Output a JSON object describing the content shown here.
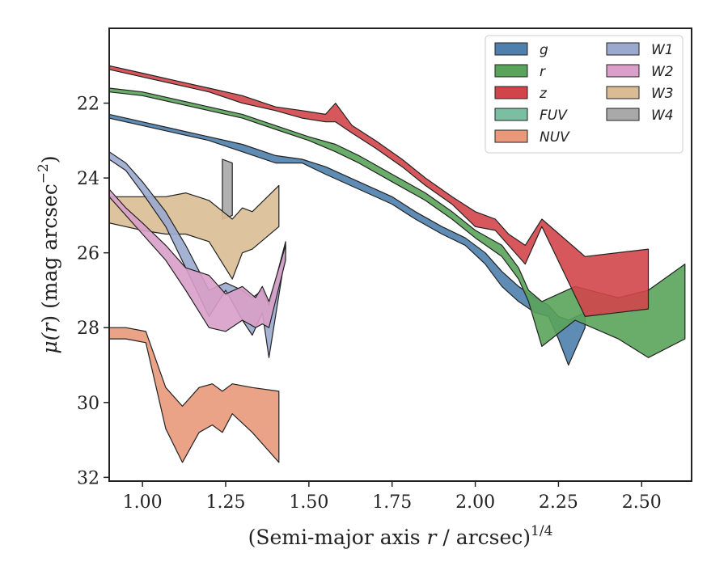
{
  "chart_data": {
    "type": "area",
    "title": "",
    "xlabel": "(Semi-major axis r / arcsec)",
    "xlabel_parts": {
      "pre": "(Semi-major axis ",
      "var": "r",
      "post": " / arcsec)",
      "sup": "1/4"
    },
    "ylabel": "μ(r) (mag arcsec⁻²)",
    "ylabel_parts": {
      "mu": "μ(",
      "var": "r",
      "post": ") (mag arcsec",
      "sup": "−2",
      "close": ")"
    },
    "xlim": [
      0.9,
      2.65
    ],
    "ylim": [
      32.1,
      20.0
    ],
    "y_inverted": true,
    "grid": false,
    "legend_position": "top-right",
    "x_ticks": [
      1.0,
      1.25,
      1.5,
      1.75,
      2.0,
      2.25,
      2.5
    ],
    "x_tick_labels": [
      "1.00",
      "1.25",
      "1.50",
      "1.75",
      "2.00",
      "2.25",
      "2.50"
    ],
    "y_ticks": [
      22,
      24,
      26,
      28,
      30,
      32
    ],
    "y_tick_labels": [
      "22",
      "24",
      "26",
      "28",
      "30",
      "32"
    ],
    "series": [
      {
        "name": "W4",
        "color": "#a9a9a9",
        "bands": [
          {
            "x": [
              1.24,
              1.27
            ],
            "y_lo": [
              25.1,
              25.0
            ],
            "y_hi": [
              23.5,
              23.6
            ]
          }
        ]
      },
      {
        "name": "W3",
        "color": "#d9bc94",
        "bands": [
          {
            "x": [
              0.9,
              1.0,
              1.07,
              1.13,
              1.2,
              1.27,
              1.3,
              1.33,
              1.41
            ],
            "y_lo": [
              25.2,
              25.4,
              25.5,
              25.5,
              25.7,
              26.7,
              26.0,
              25.9,
              25.3
            ],
            "y_hi": [
              24.5,
              24.5,
              24.5,
              24.4,
              24.6,
              25.1,
              24.8,
              24.9,
              24.2
            ]
          }
        ]
      },
      {
        "name": "W1",
        "color": "#9aaacf",
        "bands": [
          {
            "x": [
              0.9,
              0.95,
              1.0,
              1.07,
              1.13,
              1.2,
              1.25,
              1.3,
              1.33,
              1.36,
              1.38,
              1.43
            ],
            "y_lo": [
              23.5,
              23.8,
              24.4,
              25.3,
              26.4,
              27.7,
              27.0,
              27.8,
              28.2,
              27.6,
              28.8,
              26.0
            ],
            "y_hi": [
              23.3,
              23.6,
              24.1,
              24.9,
              25.8,
              27.0,
              26.8,
              27.0,
              27.2,
              27.0,
              27.4,
              25.7
            ]
          }
        ]
      },
      {
        "name": "W2",
        "color": "#d99fc8",
        "bands": [
          {
            "x": [
              0.9,
              0.95,
              1.0,
              1.07,
              1.13,
              1.2,
              1.25,
              1.3,
              1.34,
              1.36,
              1.38,
              1.43
            ],
            "y_lo": [
              24.5,
              25.0,
              25.5,
              26.2,
              27.0,
              28.0,
              28.1,
              27.8,
              28.0,
              27.9,
              28.0,
              26.2
            ],
            "y_hi": [
              24.3,
              24.8,
              25.2,
              25.8,
              26.4,
              26.6,
              27.1,
              26.9,
              27.2,
              26.9,
              27.3,
              25.8
            ]
          }
        ]
      },
      {
        "name": "NUV",
        "color": "#e9997a",
        "bands": [
          {
            "x": [
              0.9,
              0.95,
              1.01,
              1.07,
              1.12,
              1.17,
              1.21,
              1.24,
              1.27,
              1.33,
              1.41
            ],
            "y_lo": [
              28.3,
              28.3,
              28.4,
              30.7,
              31.6,
              30.8,
              30.6,
              30.8,
              30.3,
              30.8,
              31.6
            ],
            "y_hi": [
              28.0,
              28.0,
              28.1,
              29.6,
              30.1,
              29.6,
              29.5,
              29.7,
              29.5,
              29.6,
              29.7
            ]
          }
        ]
      },
      {
        "name": "g",
        "color": "#4e7fad",
        "bands": [
          {
            "x": [
              0.9,
              1.0,
              1.1,
              1.2,
              1.3,
              1.4,
              1.48,
              1.55,
              1.65,
              1.75,
              1.82,
              1.9,
              1.97,
              2.03,
              2.08,
              2.13,
              2.18,
              2.22,
              2.25,
              2.28,
              2.33
            ],
            "y_lo": [
              22.4,
              22.6,
              22.8,
              23.0,
              23.3,
              23.6,
              23.6,
              23.9,
              24.3,
              24.7,
              25.1,
              25.5,
              25.8,
              26.3,
              26.9,
              27.3,
              27.6,
              27.7,
              28.3,
              29.0,
              28.0
            ],
            "y_hi": [
              22.3,
              22.5,
              22.7,
              22.9,
              23.1,
              23.4,
              23.5,
              23.7,
              24.1,
              24.5,
              24.9,
              25.3,
              25.6,
              26.0,
              26.5,
              26.9,
              27.2,
              27.4,
              27.7,
              27.8,
              27.6
            ]
          }
        ]
      },
      {
        "name": "r",
        "color": "#5aa35a",
        "bands": [
          {
            "x": [
              0.9,
              1.0,
              1.1,
              1.2,
              1.3,
              1.4,
              1.5,
              1.58,
              1.65,
              1.75,
              1.85,
              1.93,
              2.0,
              2.08,
              2.13,
              2.16,
              2.2,
              2.3,
              2.43,
              2.52,
              2.63
            ],
            "y_lo": [
              21.7,
              21.8,
              22.0,
              22.2,
              22.4,
              22.7,
              23.0,
              23.3,
              23.6,
              24.1,
              24.6,
              25.1,
              25.6,
              26.1,
              26.7,
              27.3,
              28.5,
              27.8,
              28.3,
              28.8,
              28.3
            ],
            "y_hi": [
              21.6,
              21.7,
              21.9,
              22.1,
              22.3,
              22.6,
              22.9,
              23.1,
              23.4,
              23.9,
              24.4,
              24.9,
              25.4,
              25.8,
              26.4,
              27.0,
              27.3,
              26.9,
              27.2,
              27.0,
              26.3
            ]
          }
        ]
      },
      {
        "name": "z",
        "color": "#d1454a",
        "bands": [
          {
            "x": [
              0.9,
              1.0,
              1.1,
              1.2,
              1.3,
              1.4,
              1.48,
              1.55,
              1.58,
              1.63,
              1.7,
              1.78,
              1.85,
              1.93,
              2.0,
              2.06,
              2.1,
              2.15,
              2.2,
              2.33,
              2.52
            ],
            "y_lo": [
              21.1,
              21.3,
              21.5,
              21.7,
              22.0,
              22.2,
              22.4,
              22.5,
              22.5,
              22.8,
              23.2,
              23.7,
              24.2,
              24.7,
              25.3,
              25.4,
              25.8,
              26.3,
              25.3,
              27.7,
              27.5
            ],
            "y_hi": [
              21.0,
              21.2,
              21.4,
              21.6,
              21.8,
              22.1,
              22.2,
              22.3,
              22.0,
              22.6,
              23.0,
              23.5,
              24.0,
              24.5,
              24.9,
              25.1,
              25.5,
              25.8,
              25.1,
              26.1,
              25.9
            ]
          }
        ]
      },
      {
        "name": "FUV",
        "color": "#7bbfa3",
        "bands": []
      }
    ],
    "legend": [
      {
        "name": "g",
        "color": "#4e7fad"
      },
      {
        "name": "r",
        "color": "#5aa35a"
      },
      {
        "name": "z",
        "color": "#d1454a"
      },
      {
        "name": "FUV",
        "color": "#7bbfa3"
      },
      {
        "name": "NUV",
        "color": "#e9997a"
      },
      {
        "name": "W1",
        "color": "#9aaacf"
      },
      {
        "name": "W2",
        "color": "#d99fc8"
      },
      {
        "name": "W3",
        "color": "#d9bc94"
      },
      {
        "name": "W4",
        "color": "#a9a9a9"
      }
    ]
  }
}
